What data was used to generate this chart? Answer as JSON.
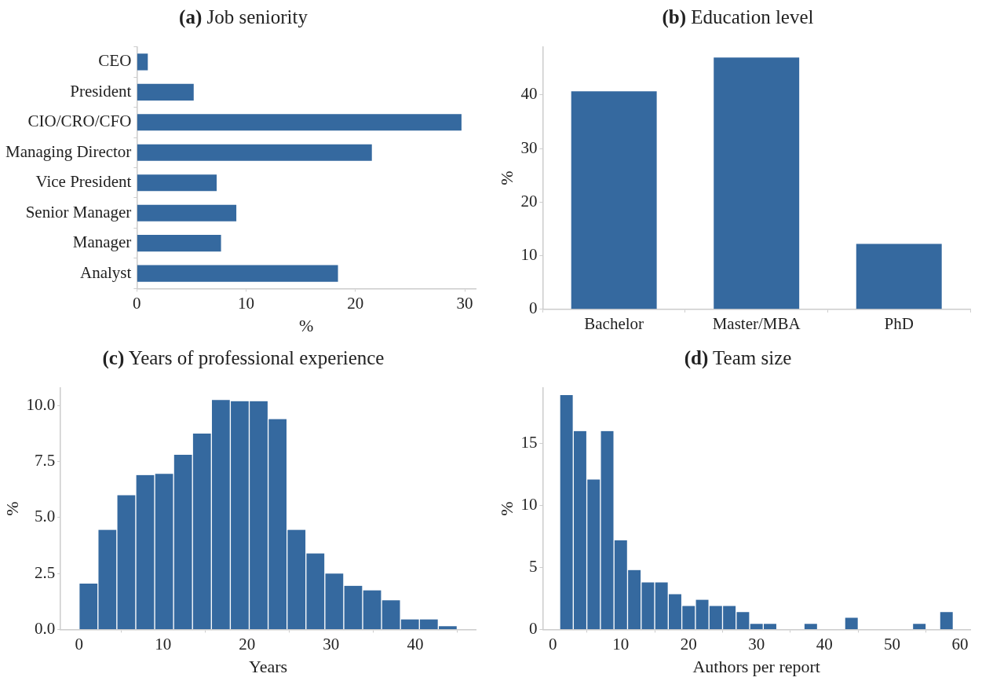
{
  "chart_data": [
    {
      "type": "bar",
      "orientation": "horizontal",
      "title": "(a) Job seniority",
      "xlabel": "%",
      "color": "#35699f",
      "categories": [
        "CEO",
        "President",
        "CIO/CRO/CFO",
        "Managing Director",
        "Vice President",
        "Senior Manager",
        "Manager",
        "Analyst"
      ],
      "values": [
        1.0,
        5.2,
        29.7,
        21.5,
        7.3,
        9.1,
        7.7,
        18.4
      ],
      "xlim": [
        0,
        31
      ],
      "xticks": [
        0,
        10,
        20,
        30
      ]
    },
    {
      "type": "bar",
      "title": "(b) Education level",
      "ylabel": "%",
      "color": "#35699f",
      "categories": [
        "Bachelor",
        "Master/MBA",
        "PhD"
      ],
      "values": [
        40.7,
        47.0,
        12.2
      ],
      "ylim": [
        0,
        49
      ],
      "yticks": [
        0,
        10,
        20,
        30,
        40
      ]
    },
    {
      "type": "histogram",
      "title": "(c) Years of professional experience",
      "xlabel": "Years",
      "ylabel": "%",
      "color": "#35699f",
      "bins": [
        0,
        2.25,
        4.5,
        6.75,
        9,
        11.25,
        13.5,
        15.75,
        18,
        20.25,
        22.5,
        24.75,
        27,
        29.25,
        31.5,
        33.75,
        36,
        38.25,
        40.5,
        42.75,
        45
      ],
      "values": [
        2.05,
        4.45,
        6.0,
        6.9,
        6.95,
        7.8,
        8.75,
        10.25,
        10.2,
        10.2,
        9.4,
        4.45,
        3.4,
        2.5,
        1.95,
        1.75,
        1.3,
        0.45,
        0.45,
        0.15
      ],
      "xlim": [
        -2.2,
        47.2
      ],
      "xticks": [
        0,
        10,
        20,
        30,
        40
      ],
      "ylim": [
        0,
        10.8
      ],
      "yticks": [
        {
          "value": 0,
          "label": "0.0"
        },
        {
          "value": 2.5,
          "label": "2.5"
        },
        {
          "value": 5,
          "label": "5.0"
        },
        {
          "value": 7.5,
          "label": "7.5"
        },
        {
          "value": 10,
          "label": "10.0"
        }
      ]
    },
    {
      "type": "histogram",
      "title": "(d) Team size",
      "xlabel": "Authors per report",
      "ylabel": "%",
      "color": "#35699f",
      "bins": [
        1,
        3,
        5,
        7,
        9,
        11,
        13,
        15,
        17,
        19,
        21,
        23,
        25,
        27,
        29,
        31,
        33,
        35,
        37,
        39,
        41,
        43,
        45,
        47,
        49,
        51,
        53,
        55,
        57,
        59
      ],
      "values": [
        18.9,
        16.0,
        12.1,
        16.0,
        7.2,
        4.8,
        3.8,
        3.8,
        2.85,
        1.9,
        2.4,
        1.9,
        1.9,
        1.4,
        0.45,
        0.45,
        0,
        0,
        0.45,
        0,
        0,
        0.95,
        0,
        0,
        0,
        0,
        0.45,
        0,
        1.4
      ],
      "xlim": [
        -1.5,
        61.5
      ],
      "xticks": [
        0,
        10,
        20,
        30,
        40,
        50,
        60
      ],
      "ylim": [
        0,
        19.5
      ],
      "yticks": [
        0,
        5,
        10,
        15
      ]
    }
  ]
}
